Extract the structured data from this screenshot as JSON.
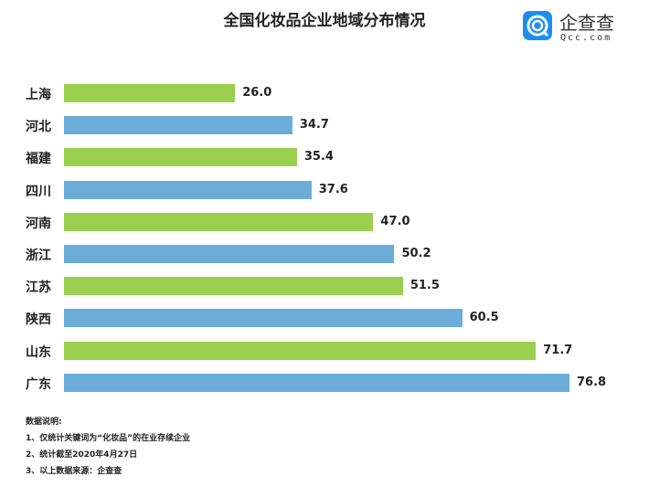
{
  "chart_data": {
    "type": "bar",
    "orientation": "horizontal",
    "title": "全国化妆品企业地域分布情况",
    "categories": [
      "上海",
      "河北",
      "福建",
      "四川",
      "河南",
      "浙江",
      "江苏",
      "陕西",
      "山东",
      "广东"
    ],
    "values": [
      26.0,
      34.7,
      35.4,
      37.6,
      47.0,
      50.2,
      51.5,
      60.5,
      71.7,
      76.8
    ],
    "value_labels": [
      "26.0",
      "34.7",
      "35.4",
      "37.6",
      "47.0",
      "50.2",
      "51.5",
      "60.5",
      "71.7",
      "76.8"
    ],
    "xlim": [
      0,
      80
    ],
    "grid": false,
    "bar_colors": [
      "#9bcf4f",
      "#6badd8"
    ]
  },
  "logo": {
    "name": "企查查",
    "sub": "Qcc.com"
  },
  "notes": [
    "数据说明:",
    "1、仅统计关键词为“化妆品”的在业存续企业",
    "2、统计截至2020年4月27日",
    "3、以上数据来源：企查查"
  ]
}
